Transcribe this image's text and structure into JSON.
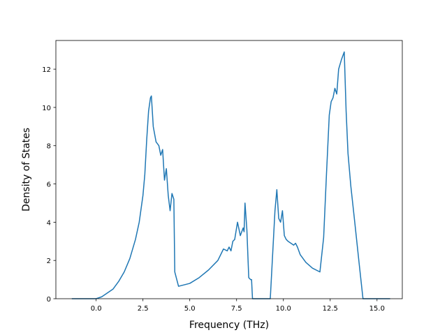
{
  "chart_data": {
    "type": "line",
    "title": "",
    "xlabel": "Frequency (THz)",
    "ylabel": "Density of States",
    "xlim": [
      -2.15,
      16.35
    ],
    "ylim": [
      0,
      13.5
    ],
    "grid": false,
    "legend": "none",
    "colors": {
      "line": "#1f77b4"
    },
    "x_ticks": [
      {
        "value": 0.0,
        "label": "0.0"
      },
      {
        "value": 2.5,
        "label": "2.5"
      },
      {
        "value": 5.0,
        "label": "5.0"
      },
      {
        "value": 7.5,
        "label": "7.5"
      },
      {
        "value": 10.0,
        "label": "10.0"
      },
      {
        "value": 12.5,
        "label": "12.5"
      },
      {
        "value": 15.0,
        "label": "15.0"
      }
    ],
    "y_ticks": [
      {
        "value": 0,
        "label": "0"
      },
      {
        "value": 2,
        "label": "2"
      },
      {
        "value": 4,
        "label": "4"
      },
      {
        "value": 6,
        "label": "6"
      },
      {
        "value": 8,
        "label": "8"
      },
      {
        "value": 10,
        "label": "10"
      },
      {
        "value": 12,
        "label": "12"
      }
    ],
    "series": [
      {
        "x": [
          -1.3,
          0.0,
          0.3,
          0.6,
          0.9,
          1.2,
          1.5,
          1.8,
          2.1,
          2.3,
          2.5,
          2.6,
          2.7,
          2.8,
          2.9,
          2.95,
          3.05,
          3.2,
          3.35,
          3.45,
          3.55,
          3.65,
          3.75,
          3.85,
          3.95,
          4.05,
          4.15,
          4.2,
          4.4,
          5.0,
          5.5,
          6.0,
          6.5,
          6.8,
          7.0,
          7.1,
          7.2,
          7.3,
          7.4,
          7.55,
          7.7,
          7.85,
          7.9,
          7.95,
          8.05,
          8.15,
          8.25,
          8.3,
          8.35,
          9.3,
          9.55,
          9.65,
          9.75,
          9.85,
          9.95,
          10.05,
          10.15,
          10.25,
          10.4,
          10.55,
          10.65,
          10.75,
          10.9,
          11.2,
          11.55,
          11.95,
          12.15,
          12.3,
          12.45,
          12.55,
          12.65,
          12.75,
          12.85,
          12.95,
          13.1,
          13.25,
          13.35,
          13.45,
          13.6,
          13.8,
          14.05,
          14.25,
          14.35,
          15.7
        ],
        "y": [
          0,
          0,
          0.1,
          0.3,
          0.5,
          0.9,
          1.4,
          2.1,
          3.1,
          4.0,
          5.4,
          6.5,
          8.3,
          9.8,
          10.5,
          10.6,
          9.0,
          8.2,
          8.0,
          7.5,
          7.8,
          6.2,
          6.8,
          5.4,
          4.6,
          5.5,
          5.2,
          1.4,
          0.65,
          0.8,
          1.1,
          1.5,
          2.0,
          2.6,
          2.5,
          2.7,
          2.5,
          3.0,
          3.1,
          4.0,
          3.3,
          3.7,
          3.5,
          5.0,
          3.6,
          1.1,
          1.0,
          1.0,
          0,
          0,
          4.6,
          5.7,
          4.2,
          4.0,
          4.6,
          3.3,
          3.1,
          3.0,
          2.9,
          2.8,
          2.9,
          2.7,
          2.3,
          1.9,
          1.6,
          1.4,
          3.2,
          6.5,
          9.6,
          10.3,
          10.5,
          11.0,
          10.7,
          12.0,
          12.5,
          12.9,
          9.8,
          7.6,
          5.9,
          4.1,
          1.8,
          0,
          0,
          0
        ]
      }
    ]
  }
}
